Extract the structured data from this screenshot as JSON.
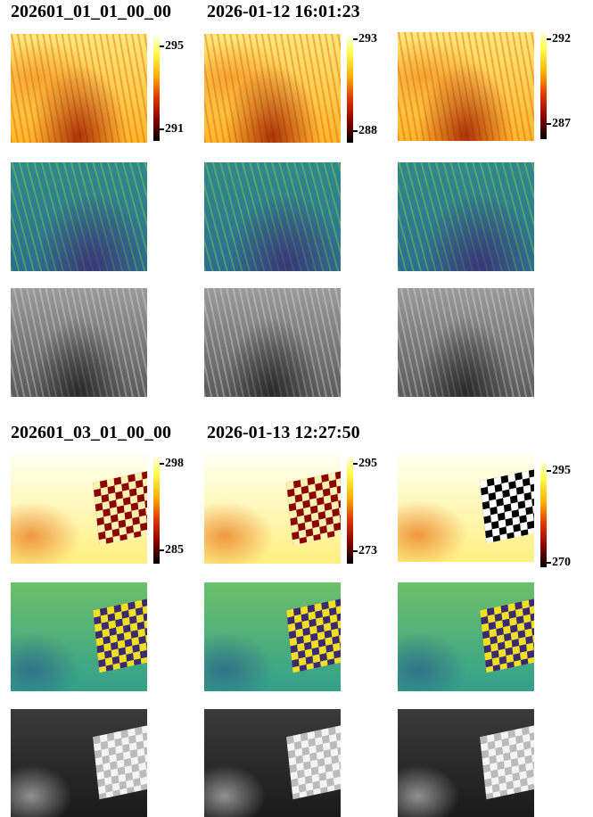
{
  "groups": [
    {
      "id": "202601_01_01_00_00",
      "timestamp": "2026-01-12 16:01:23",
      "colorbars": [
        {
          "ticks": [
            295,
            291
          ]
        },
        {
          "ticks": [
            293,
            288
          ]
        },
        {
          "ticks": [
            292,
            287
          ]
        }
      ]
    },
    {
      "id": "202601_03_01_00_00",
      "timestamp": "2026-01-13 12:27:50",
      "colorbars": [
        {
          "ticks": [
            298,
            285
          ]
        },
        {
          "ticks": [
            295,
            273
          ]
        },
        {
          "ticks": [
            295,
            270
          ]
        }
      ]
    }
  ]
}
